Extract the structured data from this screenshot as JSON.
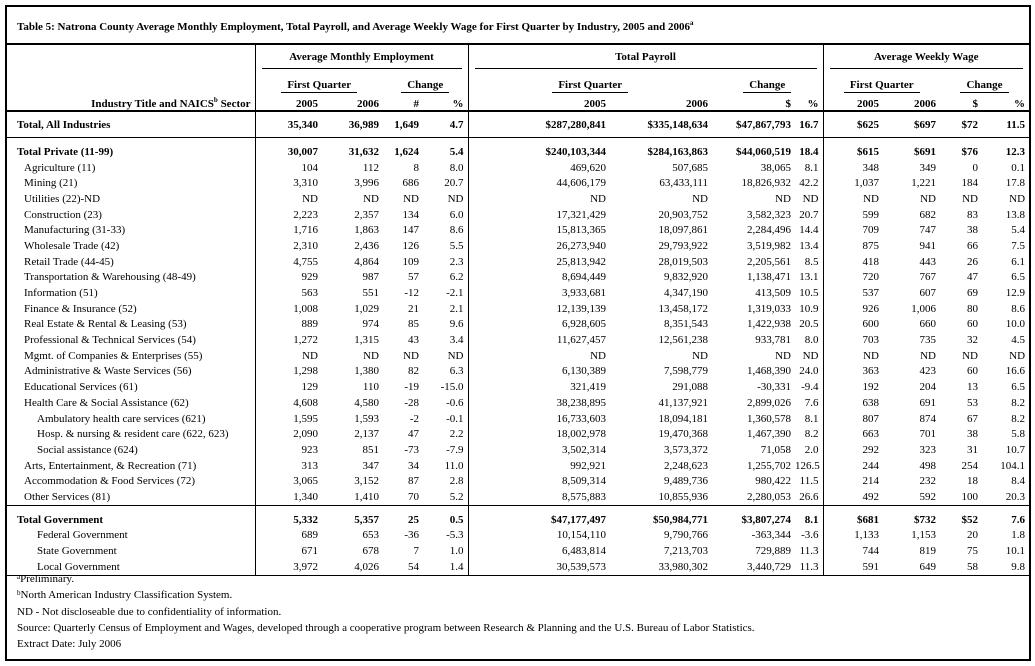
{
  "title": {
    "text": "Table 5: Natrona County Average Monthly Employment, Total Payroll, and Average Weekly Wage for First Quarter by Industry, 2005 and 2006",
    "note": "a"
  },
  "header": {
    "industry_label": "Industry Title and NAICS",
    "industry_note": "b",
    "industry_label_end": "Sector",
    "groups": [
      {
        "title": "Average Monthly Employment",
        "first_quarter": "First Quarter",
        "change": "Change",
        "columns": [
          "2005",
          "2006",
          "#",
          "%"
        ]
      },
      {
        "title": "Total Payroll",
        "first_quarter": "First Quarter",
        "change": "Change",
        "columns": [
          "2005",
          "2006",
          "$",
          "%"
        ]
      },
      {
        "title": "Average Weekly Wage",
        "first_quarter": "First Quarter",
        "change": "Change",
        "columns": [
          "2005",
          "2006",
          "$",
          "%"
        ]
      }
    ]
  },
  "sections": [
    {
      "total": [
        "Total, All Industries",
        "35,340",
        "36,989",
        "1,649",
        "4.7",
        "$287,280,841",
        "$335,148,634",
        "$47,867,793",
        "16.7",
        "$625",
        "$697",
        "$72",
        "11.5"
      ]
    },
    {
      "total": [
        "Total Private (11-99)",
        "30,007",
        "31,632",
        "1,624",
        "5.4",
        "$240,103,344",
        "$284,163,863",
        "$44,060,519",
        "18.4",
        "$615",
        "$691",
        "$76",
        "12.3"
      ],
      "rows": [
        {
          "cells": [
            "Agriculture (11)",
            "104",
            "112",
            "8",
            "8.0",
            "469,620",
            "507,685",
            "38,065",
            "8.1",
            "348",
            "349",
            "0",
            "0.1"
          ]
        },
        {
          "cells": [
            "Mining (21)",
            "3,310",
            "3,996",
            "686",
            "20.7",
            "44,606,179",
            "63,433,111",
            "18,826,932",
            "42.2",
            "1,037",
            "1,221",
            "184",
            "17.8"
          ]
        },
        {
          "cells": [
            "Utilities (22)-ND",
            "ND",
            "ND",
            "ND",
            "ND",
            "ND",
            "ND",
            "ND",
            "ND",
            "ND",
            "ND",
            "ND",
            "ND"
          ]
        },
        {
          "cells": [
            "Construction (23)",
            "2,223",
            "2,357",
            "134",
            "6.0",
            "17,321,429",
            "20,903,752",
            "3,582,323",
            "20.7",
            "599",
            "682",
            "83",
            "13.8"
          ]
        },
        {
          "cells": [
            "Manufacturing (31-33)",
            "1,716",
            "1,863",
            "147",
            "8.6",
            "15,813,365",
            "18,097,861",
            "2,284,496",
            "14.4",
            "709",
            "747",
            "38",
            "5.4"
          ]
        },
        {
          "cells": [
            "Wholesale Trade (42)",
            "2,310",
            "2,436",
            "126",
            "5.5",
            "26,273,940",
            "29,793,922",
            "3,519,982",
            "13.4",
            "875",
            "941",
            "66",
            "7.5"
          ]
        },
        {
          "cells": [
            "Retail Trade (44-45)",
            "4,755",
            "4,864",
            "109",
            "2.3",
            "25,813,942",
            "28,019,503",
            "2,205,561",
            "8.5",
            "418",
            "443",
            "26",
            "6.1"
          ]
        },
        {
          "cells": [
            "Transportation & Warehousing (48-49)",
            "929",
            "987",
            "57",
            "6.2",
            "8,694,449",
            "9,832,920",
            "1,138,471",
            "13.1",
            "720",
            "767",
            "47",
            "6.5"
          ]
        },
        {
          "cells": [
            "Information (51)",
            "563",
            "551",
            "-12",
            "-2.1",
            "3,933,681",
            "4,347,190",
            "413,509",
            "10.5",
            "537",
            "607",
            "69",
            "12.9"
          ]
        },
        {
          "cells": [
            "Finance & Insurance (52)",
            "1,008",
            "1,029",
            "21",
            "2.1",
            "12,139,139",
            "13,458,172",
            "1,319,033",
            "10.9",
            "926",
            "1,006",
            "80",
            "8.6"
          ]
        },
        {
          "cells": [
            "Real Estate & Rental & Leasing (53)",
            "889",
            "974",
            "85",
            "9.6",
            "6,928,605",
            "8,351,543",
            "1,422,938",
            "20.5",
            "600",
            "660",
            "60",
            "10.0"
          ]
        },
        {
          "cells": [
            "Professional & Technical Services (54)",
            "1,272",
            "1,315",
            "43",
            "3.4",
            "11,627,457",
            "12,561,238",
            "933,781",
            "8.0",
            "703",
            "735",
            "32",
            "4.5"
          ]
        },
        {
          "cells": [
            "Mgmt. of Companies & Enterprises (55)",
            "ND",
            "ND",
            "ND",
            "ND",
            "ND",
            "ND",
            "ND",
            "ND",
            "ND",
            "ND",
            "ND",
            "ND"
          ]
        },
        {
          "cells": [
            "Administrative & Waste Services (56)",
            "1,298",
            "1,380",
            "82",
            "6.3",
            "6,130,389",
            "7,598,779",
            "1,468,390",
            "24.0",
            "363",
            "423",
            "60",
            "16.6"
          ]
        },
        {
          "cells": [
            "Educational Services (61)",
            "129",
            "110",
            "-19",
            "-15.0",
            "321,419",
            "291,088",
            "-30,331",
            "-9.4",
            "192",
            "204",
            "13",
            "6.5"
          ]
        },
        {
          "cells": [
            "Health Care & Social Assistance (62)",
            "4,608",
            "4,580",
            "-28",
            "-0.6",
            "38,238,895",
            "41,137,921",
            "2,899,026",
            "7.6",
            "638",
            "691",
            "53",
            "8.2"
          ],
          "sub": [
            {
              "cells": [
                "Ambulatory health care services (621)",
                "1,595",
                "1,593",
                "-2",
                "-0.1",
                "16,733,603",
                "18,094,181",
                "1,360,578",
                "8.1",
                "807",
                "874",
                "67",
                "8.2"
              ]
            },
            {
              "cells": [
                "Hosp. & nursing & resident care (622, 623)",
                "2,090",
                "2,137",
                "47",
                "2.2",
                "18,002,978",
                "19,470,368",
                "1,467,390",
                "8.2",
                "663",
                "701",
                "38",
                "5.8"
              ]
            },
            {
              "cells": [
                "Social assistance (624)",
                "923",
                "851",
                "-73",
                "-7.9",
                "3,502,314",
                "3,573,372",
                "71,058",
                "2.0",
                "292",
                "323",
                "31",
                "10.7"
              ]
            }
          ]
        },
        {
          "cells": [
            "Arts, Entertainment, & Recreation (71)",
            "313",
            "347",
            "34",
            "11.0",
            "992,921",
            "2,248,623",
            "1,255,702",
            "126.5",
            "244",
            "498",
            "254",
            "104.1"
          ]
        },
        {
          "cells": [
            "Accommodation & Food Services (72)",
            "3,065",
            "3,152",
            "87",
            "2.8",
            "8,509,314",
            "9,489,736",
            "980,422",
            "11.5",
            "214",
            "232",
            "18",
            "8.4"
          ]
        },
        {
          "cells": [
            "Other Services (81)",
            "1,340",
            "1,410",
            "70",
            "5.2",
            "8,575,883",
            "10,855,936",
            "2,280,053",
            "26.6",
            "492",
            "592",
            "100",
            "20.3"
          ]
        }
      ]
    },
    {
      "total": [
        "Total Government",
        "5,332",
        "5,357",
        "25",
        "0.5",
        "$47,177,497",
        "$50,984,771",
        "$3,807,274",
        "8.1",
        "$681",
        "$732",
        "$52",
        "7.6"
      ],
      "rows": [
        {
          "cells": [
            "Federal Government",
            "689",
            "653",
            "-36",
            "-5.3",
            "10,154,110",
            "9,790,766",
            "-363,344",
            "-3.6",
            "1,133",
            "1,153",
            "20",
            "1.8"
          ]
        },
        {
          "cells": [
            "State Government",
            "671",
            "678",
            "7",
            "1.0",
            "6,483,814",
            "7,213,703",
            "729,889",
            "11.3",
            "744",
            "819",
            "75",
            "10.1"
          ]
        },
        {
          "cells": [
            "Local Government",
            "3,972",
            "4,026",
            "54",
            "1.4",
            "30,539,573",
            "33,980,302",
            "3,440,729",
            "11.3",
            "591",
            "649",
            "58",
            "9.8"
          ]
        }
      ]
    }
  ],
  "notes": [
    {
      "mark": "a",
      "text": "Preliminary."
    },
    {
      "mark": "b",
      "text": "North American Industry Classification System."
    },
    {
      "text": "ND - Not discloseable due to confidentiality of information."
    },
    {
      "text": "Source: Quarterly Census of Employment and Wages, developed through a cooperative program between Research & Planning and the U.S. Bureau of Labor Statistics."
    },
    {
      "text": "Extract Date: July 2006"
    }
  ]
}
